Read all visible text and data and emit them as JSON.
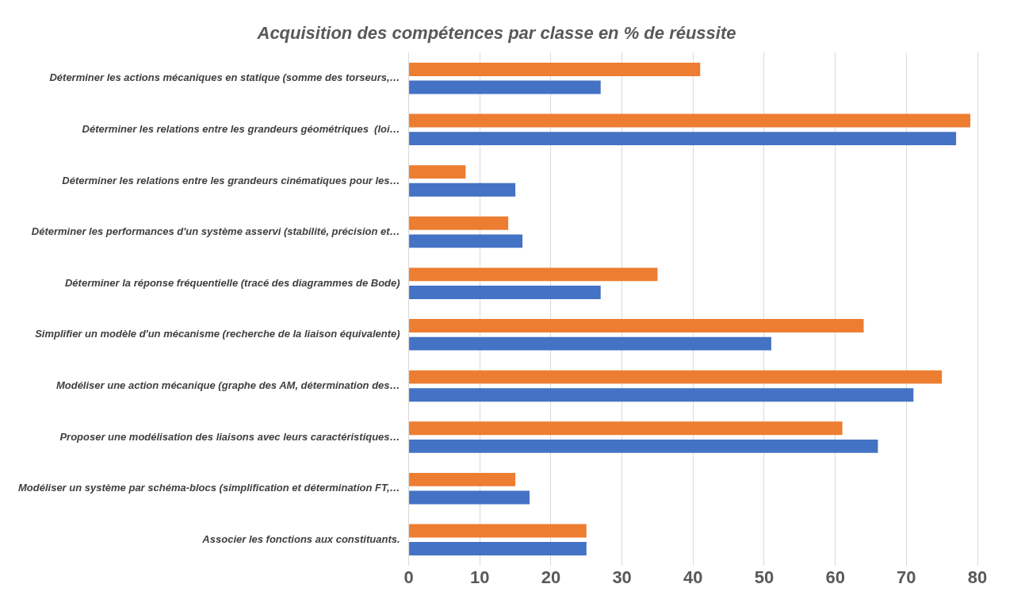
{
  "chart_data": {
    "type": "bar",
    "orientation": "horizontal",
    "title": "Acquisition des compétences par classe en % de réussite",
    "categories": [
      "Déterminer les actions mécaniques en statique (somme des torseurs,…",
      "Déterminer les relations entre les grandeurs géométriques  (loi…",
      "Déterminer les relations entre les grandeurs cinématiques pour les…",
      "Déterminer les performances d'un système asservi (stabilité, précision et…",
      "Déterminer la réponse fréquentielle (tracé des diagrammes de Bode)",
      "Simplifier un modèle d'un mécanisme (recherche de la liaison équivalente)",
      "Modéliser une action mécanique (graphe des AM, détermination des…",
      "Proposer une modélisation des liaisons avec leurs caractéristiques…",
      "Modéliser un système par schéma-blocs (simplification et détermination FT,…",
      "Associer les fonctions aux constituants."
    ],
    "series": [
      {
        "color": "#ed7d31",
        "values": [
          41,
          79,
          8,
          14,
          35,
          64,
          75,
          61,
          15,
          25
        ]
      },
      {
        "color": "#4472c4",
        "values": [
          27,
          77,
          15,
          16,
          27,
          51,
          71,
          66,
          17,
          25
        ]
      }
    ],
    "xlim": [
      0,
      80
    ],
    "xticks": [
      0,
      10,
      20,
      30,
      40,
      50,
      60,
      70,
      80
    ],
    "grid": "x",
    "legend": false
  }
}
